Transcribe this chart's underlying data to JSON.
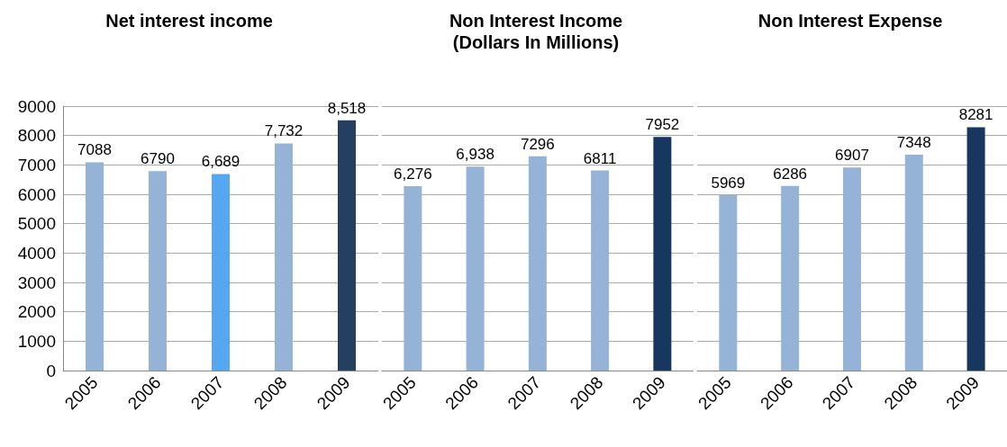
{
  "chart_data": [
    {
      "type": "bar",
      "title": "Net interest income",
      "categories": [
        "2005",
        "2006",
        "2007",
        "2008",
        "2009"
      ],
      "values": [
        7088,
        6790,
        6689,
        7732,
        8518
      ],
      "colors": [
        "#95b3d7",
        "#95b3d7",
        "#55a7f2",
        "#95b3d7",
        "#243f60"
      ],
      "value_labels": [
        "7088",
        "6790",
        "6,689",
        "7,732",
        "8,518"
      ],
      "ylim": [
        0,
        9000
      ],
      "yticks": [
        0,
        1000,
        2000,
        3000,
        4000,
        5000,
        6000,
        7000,
        8000,
        9000
      ],
      "grid": "y"
    },
    {
      "type": "bar",
      "title": "Non Interest Income",
      "subtitle": "(Dollars In Millions)",
      "categories": [
        "2005",
        "2006",
        "2007",
        "2008",
        "2009"
      ],
      "values": [
        6276,
        6938,
        7296,
        6811,
        7952
      ],
      "colors": [
        "#95b3d7",
        "#95b3d7",
        "#95b3d7",
        "#95b3d7",
        "#17375e"
      ],
      "value_labels": [
        "6,276",
        "6,938",
        "7296",
        "6811",
        "7952"
      ],
      "ylim": [
        0,
        9000
      ],
      "yticks": [
        0,
        1000,
        2000,
        3000,
        4000,
        5000,
        6000,
        7000,
        8000,
        9000
      ],
      "grid": "y",
      "tick_labels": "x"
    },
    {
      "type": "bar",
      "title": "Non Interest Expense",
      "categories": [
        "2005",
        "2006",
        "2007",
        "2008",
        "2009"
      ],
      "values": [
        5969,
        6286,
        6907,
        7348,
        8281
      ],
      "colors": [
        "#95b3d7",
        "#95b3d7",
        "#95b3d7",
        "#95b3d7",
        "#17375e"
      ],
      "value_labels": [
        "5969",
        "6286",
        "6907",
        "7348",
        "8281"
      ],
      "ylim": [
        0,
        9000
      ],
      "yticks": [
        0,
        1000,
        2000,
        3000,
        4000,
        5000,
        6000,
        7000,
        8000,
        9000
      ],
      "grid": "y",
      "tick_labels": "x"
    }
  ]
}
